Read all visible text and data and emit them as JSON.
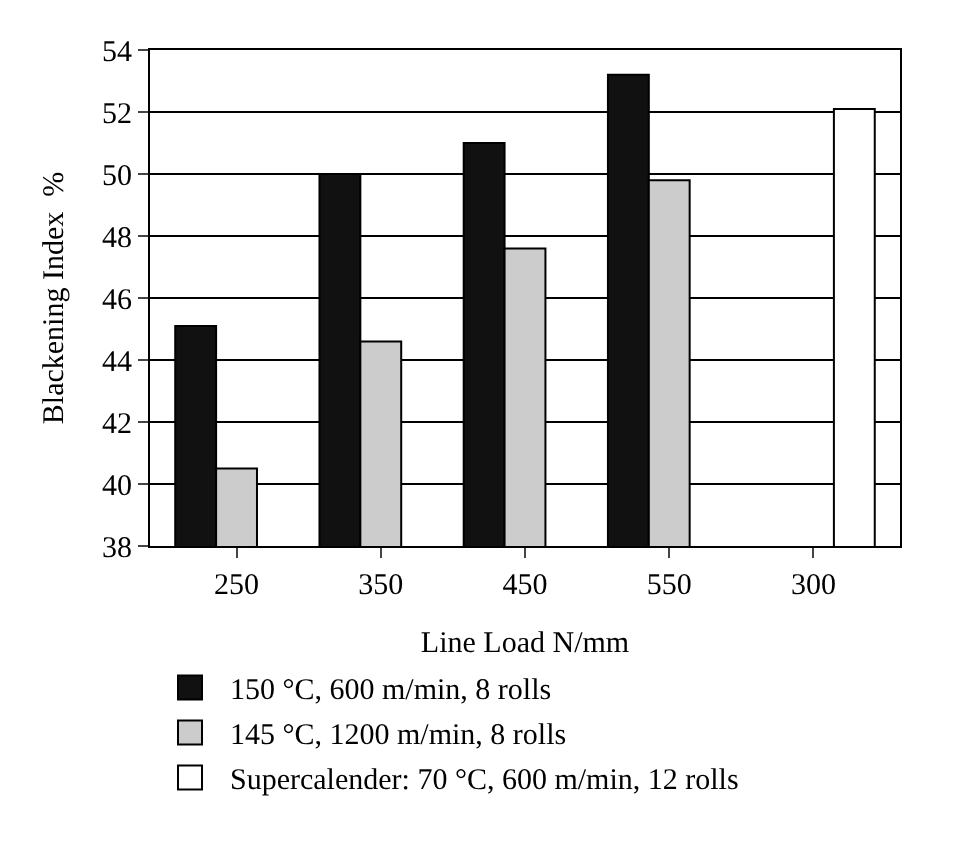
{
  "chart_data": {
    "type": "bar",
    "xlabel": "Line Load N/mm",
    "ylabel": "Blackening Index  %",
    "categories": [
      "250",
      "350",
      "450",
      "550",
      "300"
    ],
    "series": [
      {
        "name": "150 °C, 600 m/min, 8 rolls",
        "color": "#111111",
        "values": [
          45.1,
          50.0,
          51.0,
          53.2,
          null
        ]
      },
      {
        "name": "145 °C, 1200 m/min, 8 rolls",
        "color": "#cccccc",
        "values": [
          40.5,
          44.6,
          47.6,
          49.8,
          null
        ]
      },
      {
        "name": "Supercalender: 70 °C, 600 m/min, 12 rolls",
        "color": "#ffffff",
        "values": [
          null,
          null,
          null,
          null,
          52.1
        ]
      }
    ],
    "ylim": [
      38,
      54
    ],
    "yticks": [
      38,
      40,
      42,
      44,
      46,
      48,
      50,
      52,
      54
    ],
    "grid": "y",
    "legend": "bottom"
  }
}
